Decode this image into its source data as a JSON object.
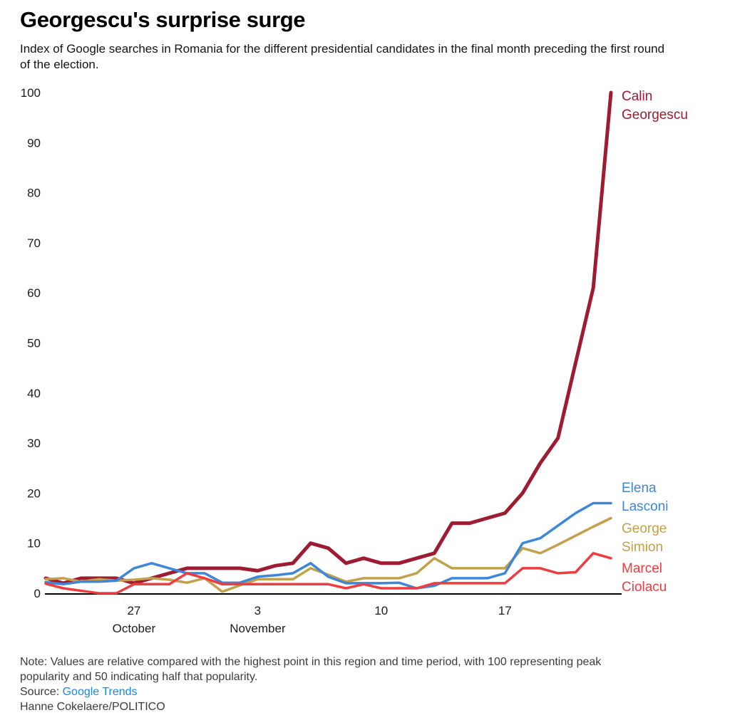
{
  "header": {
    "title": "Georgescu's surprise surge",
    "subtitle": "Index of Google searches in Romania for the different presidential candidates in the final month preceding the first round of the election."
  },
  "notes": {
    "note": "Note: Values are relative compared with the highest point in this region and time period, with 100 representing peak popularity and 50 indicating half that popularity.",
    "source_label": "Source:",
    "source_link": "Google Trends",
    "credit": "Hanne Cokelaere/POLITICO"
  },
  "colors": {
    "georgescu": "#9e1b32",
    "lasconi": "#3c87d9",
    "simion": "#c3a04a",
    "ciolacu": "#f03c3f",
    "axis": "#000000",
    "tick_text": "#1c1c1c",
    "link_blue": "#1787e8"
  },
  "chart_data": {
    "type": "line",
    "title": "Georgescu's surprise surge",
    "xlabel": "",
    "ylabel": "",
    "ylim": [
      0,
      100
    ],
    "yticks": [
      0,
      10,
      20,
      30,
      40,
      50,
      60,
      70,
      80,
      90,
      100
    ],
    "grid": false,
    "legend_position": "right-end-labels",
    "x_dates": [
      "Oct 22",
      "Oct 23",
      "Oct 24",
      "Oct 25",
      "Oct 26",
      "Oct 27",
      "Oct 28",
      "Oct 29",
      "Oct 30",
      "Oct 31",
      "Nov 1",
      "Nov 2",
      "Nov 3",
      "Nov 4",
      "Nov 5",
      "Nov 6",
      "Nov 7",
      "Nov 8",
      "Nov 9",
      "Nov 10",
      "Nov 11",
      "Nov 12",
      "Nov 13",
      "Nov 14",
      "Nov 15",
      "Nov 16",
      "Nov 17",
      "Nov 18",
      "Nov 19",
      "Nov 20",
      "Nov 21",
      "Nov 22",
      "Nov 23"
    ],
    "x_ticks": [
      {
        "index": 5,
        "day": "27",
        "month": "October"
      },
      {
        "index": 12,
        "day": "3",
        "month": "November"
      },
      {
        "index": 19,
        "day": "10",
        "month": ""
      },
      {
        "index": 26,
        "day": "17",
        "month": ""
      }
    ],
    "series": [
      {
        "id": "georgescu",
        "name": "Calin Georgescu",
        "label_lines": [
          "Calin",
          "Georgescu"
        ],
        "color": "#9e1b32",
        "stroke_width": 5,
        "values": [
          3,
          2,
          3,
          3,
          3,
          2,
          3,
          4,
          5,
          5,
          5,
          5,
          4.5,
          5.5,
          6,
          10,
          9,
          6,
          7,
          6,
          6,
          7,
          8,
          14,
          14,
          15,
          16,
          20,
          26,
          31,
          46,
          61,
          100
        ]
      },
      {
        "id": "simion",
        "name": "George Simion",
        "label_lines": [
          "George",
          "Simion"
        ],
        "color": "#c3a04a",
        "stroke_width": 3.5,
        "values": [
          2.8,
          3,
          2.3,
          2.8,
          2.5,
          2.7,
          3,
          2.7,
          2.1,
          3,
          0.3,
          1.6,
          2.8,
          2.8,
          2.8,
          5,
          3.7,
          2.3,
          3,
          3,
          3,
          4,
          7,
          5,
          5,
          5,
          5,
          9,
          8,
          9.7,
          11.5,
          13.3,
          15
        ]
      },
      {
        "id": "lasconi",
        "name": "Elena Lasconi",
        "label_lines": [
          "Elena",
          "Lasconi"
        ],
        "color": "#3c87d9",
        "stroke_width": 3.5,
        "values": [
          2.2,
          1.8,
          2.3,
          2.3,
          2.5,
          5,
          6,
          5,
          4,
          4,
          2.1,
          2.1,
          3.3,
          3.6,
          4,
          6,
          3.3,
          2,
          2,
          2,
          2.1,
          1,
          1.5,
          3,
          3,
          3,
          4,
          10,
          11,
          13.5,
          16,
          18,
          18
        ]
      },
      {
        "id": "ciolacu",
        "name": "Marcel Ciolacu",
        "label_lines": [
          "Marcel",
          "Ciolacu"
        ],
        "color": "#f03c3f",
        "stroke_width": 3.5,
        "values": [
          1.9,
          1,
          0.5,
          0,
          0,
          1.8,
          1.8,
          1.8,
          4,
          3,
          1.8,
          1.8,
          1.8,
          1.8,
          1.8,
          1.8,
          1.8,
          1,
          1.8,
          1,
          1,
          1,
          2,
          2,
          2,
          2,
          2,
          5,
          5,
          4,
          4.2,
          8,
          7
        ]
      }
    ]
  }
}
